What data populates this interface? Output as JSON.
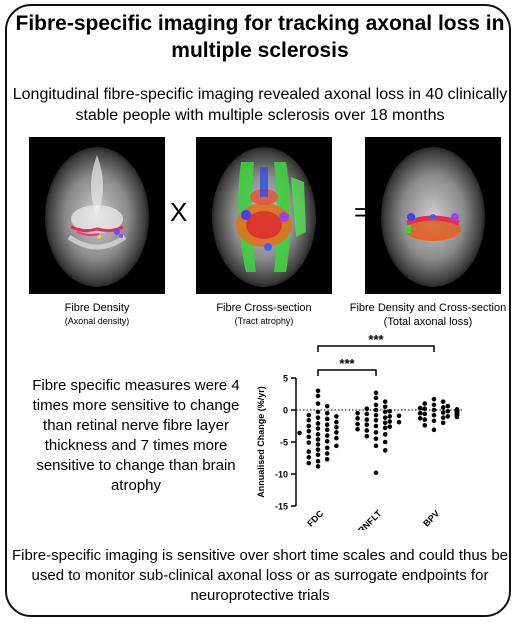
{
  "title": "Fibre-specific imaging for tracking axonal loss in multiple sclerosis",
  "subtitle": "Longitudinal fibre-specific imaging revealed axonal loss in 40 clinically stable people with multiple sclerosis over 18 months",
  "panels": [
    {
      "label": "Fibre Density",
      "sublabel": "(Axonal density)"
    },
    {
      "label": "Fibre Cross-section",
      "sublabel": "(Tract atrophy)"
    },
    {
      "label": "Fibre Density and Cross-section",
      "sublabel": "(Total axonal loss)"
    }
  ],
  "operators": {
    "times": "X",
    "equals": "="
  },
  "left_text": "Fibre specific measures were 4 times more sensitive to change than retinal nerve fibre layer thickness and 7 times more sensitive to change than brain atrophy",
  "bottom_text": "Fibre-specific imaging is sensitive over short time scales and could thus be used to monitor sub-clinical axonal loss or as surrogate endpoints for neuroprotective trials",
  "colors": {
    "points": "#000000",
    "border": "#111111"
  },
  "chart_data": {
    "type": "scatter",
    "categories": [
      "FDC",
      "RNFLT",
      "BPV"
    ],
    "ylabel": "Annualised Change (%/yr)",
    "ylim": [
      -15,
      5
    ],
    "yticks": [
      5,
      0,
      -5,
      -10,
      -15
    ],
    "reference_line": 0,
    "significance": [
      {
        "from": "FDC",
        "to": "RNFLT",
        "label": "***"
      },
      {
        "from": "FDC",
        "to": "BPV",
        "label": "***"
      }
    ],
    "series": [
      {
        "category": "FDC",
        "values": [
          3.0,
          2.2,
          1.0,
          0.6,
          -0.3,
          -0.5,
          -0.8,
          -1.0,
          -1.2,
          -1.4,
          -1.6,
          -1.9,
          -2.1,
          -2.3,
          -2.5,
          -2.7,
          -2.9,
          -3.1,
          -3.3,
          -3.5,
          -3.6,
          -3.8,
          -4.0,
          -4.2,
          -4.4,
          -4.6,
          -4.9,
          -5.1,
          -5.4,
          -5.6,
          -5.9,
          -6.2,
          -6.5,
          -6.8,
          -7.0,
          -7.4,
          -7.7,
          -8.0,
          -8.3,
          -8.8
        ]
      },
      {
        "category": "RNFLT",
        "values": [
          2.7,
          1.9,
          1.3,
          0.8,
          0.5,
          0.2,
          0.0,
          -0.2,
          -0.3,
          -0.5,
          -0.6,
          -0.8,
          -0.9,
          -1.0,
          -1.2,
          -1.3,
          -1.5,
          -1.6,
          -1.8,
          -1.9,
          -2.0,
          -2.2,
          -2.3,
          -2.5,
          -2.6,
          -2.8,
          -3.0,
          -3.2,
          -3.5,
          -3.8,
          -4.1,
          -4.5,
          -5.0,
          -5.6,
          -6.3,
          -9.8
        ]
      },
      {
        "category": "BPV",
        "values": [
          1.7,
          1.3,
          1.0,
          0.8,
          0.6,
          0.4,
          0.3,
          0.2,
          0.1,
          0.0,
          0.0,
          -0.1,
          -0.1,
          -0.2,
          -0.2,
          -0.3,
          -0.3,
          -0.4,
          -0.4,
          -0.5,
          -0.5,
          -0.6,
          -0.6,
          -0.7,
          -0.7,
          -0.8,
          -0.9,
          -1.0,
          -1.1,
          -1.2,
          -1.3,
          -1.5,
          -1.7,
          -2.0,
          -2.4,
          -3.1
        ]
      }
    ]
  }
}
